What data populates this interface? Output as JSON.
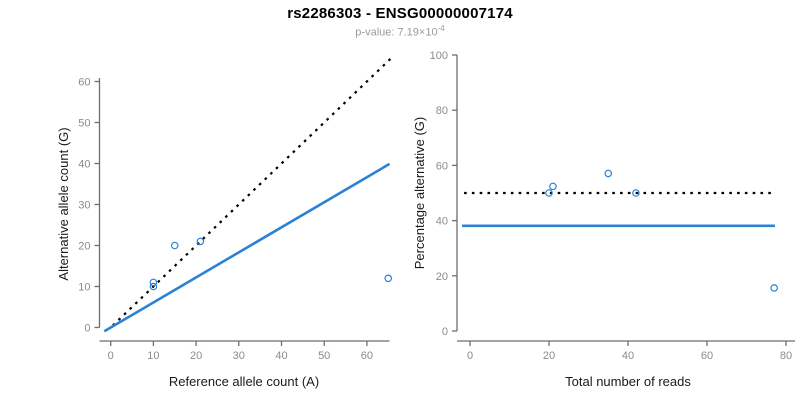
{
  "header": {
    "title": "rs2286303 - ENSG00000007174",
    "subtitle_prefix": "p-value: 7.19×10",
    "subtitle_exponent": "-4"
  },
  "colors": {
    "accent_blue": "#2b82d5",
    "dotted_black": "#000000",
    "axis_line": "#6e6e6e",
    "tick_label": "#8c8c8c",
    "axis_label": "#1a1a1a",
    "subtitle_gray": "#9b9b9b"
  },
  "chart_data": [
    {
      "type": "scatter",
      "name": "left",
      "title": "",
      "xlabel": "Reference allele count (A)",
      "ylabel": "Alternative allele count (G)",
      "xticks": [
        0,
        10,
        20,
        30,
        40,
        50,
        60
      ],
      "yticks": [
        0,
        10,
        20,
        30,
        40,
        50,
        60
      ],
      "xlim": [
        -2.6,
        67.6
      ],
      "ylim": [
        -2.6,
        67.6
      ],
      "grid": false,
      "points": [
        {
          "x": 10,
          "y": 10
        },
        {
          "x": 10,
          "y": 11
        },
        {
          "x": 15,
          "y": 20
        },
        {
          "x": 21,
          "y": 21
        },
        {
          "x": 65,
          "y": 12
        }
      ],
      "lines": [
        {
          "name": "identity-line",
          "style": "dotted",
          "color": "dotted_black",
          "x1": 0.5,
          "y1": 0.5,
          "x2": 65.8,
          "y2": 65.8,
          "meaning": "y = x (balanced expression)"
        },
        {
          "name": "fit-line",
          "style": "solid",
          "color": "accent_blue",
          "x1": -1.5,
          "y1": -0.92,
          "x2": 65.3,
          "y2": 39.9,
          "slope": 0.611
        }
      ]
    },
    {
      "type": "scatter",
      "name": "right",
      "title": "",
      "xlabel": "Total number of reads",
      "ylabel": "Percentage alternative (G)",
      "xticks": [
        0,
        20,
        40,
        60,
        80
      ],
      "yticks": [
        0,
        20,
        40,
        60,
        80,
        100
      ],
      "xlim": [
        -3.1,
        83.1
      ],
      "ylim": [
        -4,
        104
      ],
      "grid": false,
      "points": [
        {
          "x": 20,
          "y": 50
        },
        {
          "x": 21,
          "y": 52.4
        },
        {
          "x": 35,
          "y": 57.1
        },
        {
          "x": 42,
          "y": 50
        },
        {
          "x": 77,
          "y": 15.6
        }
      ],
      "lines": [
        {
          "name": "null-expectation-line",
          "style": "dotted",
          "color": "dotted_black",
          "x1": -1.5,
          "y1": 50,
          "x2": 76.7,
          "y2": 50,
          "meaning": "50% expectation"
        },
        {
          "name": "mean-percentage-line",
          "style": "solid",
          "color": "accent_blue",
          "x1": -2.0,
          "y1": 38.1,
          "x2": 77.2,
          "y2": 38.1
        }
      ]
    }
  ]
}
